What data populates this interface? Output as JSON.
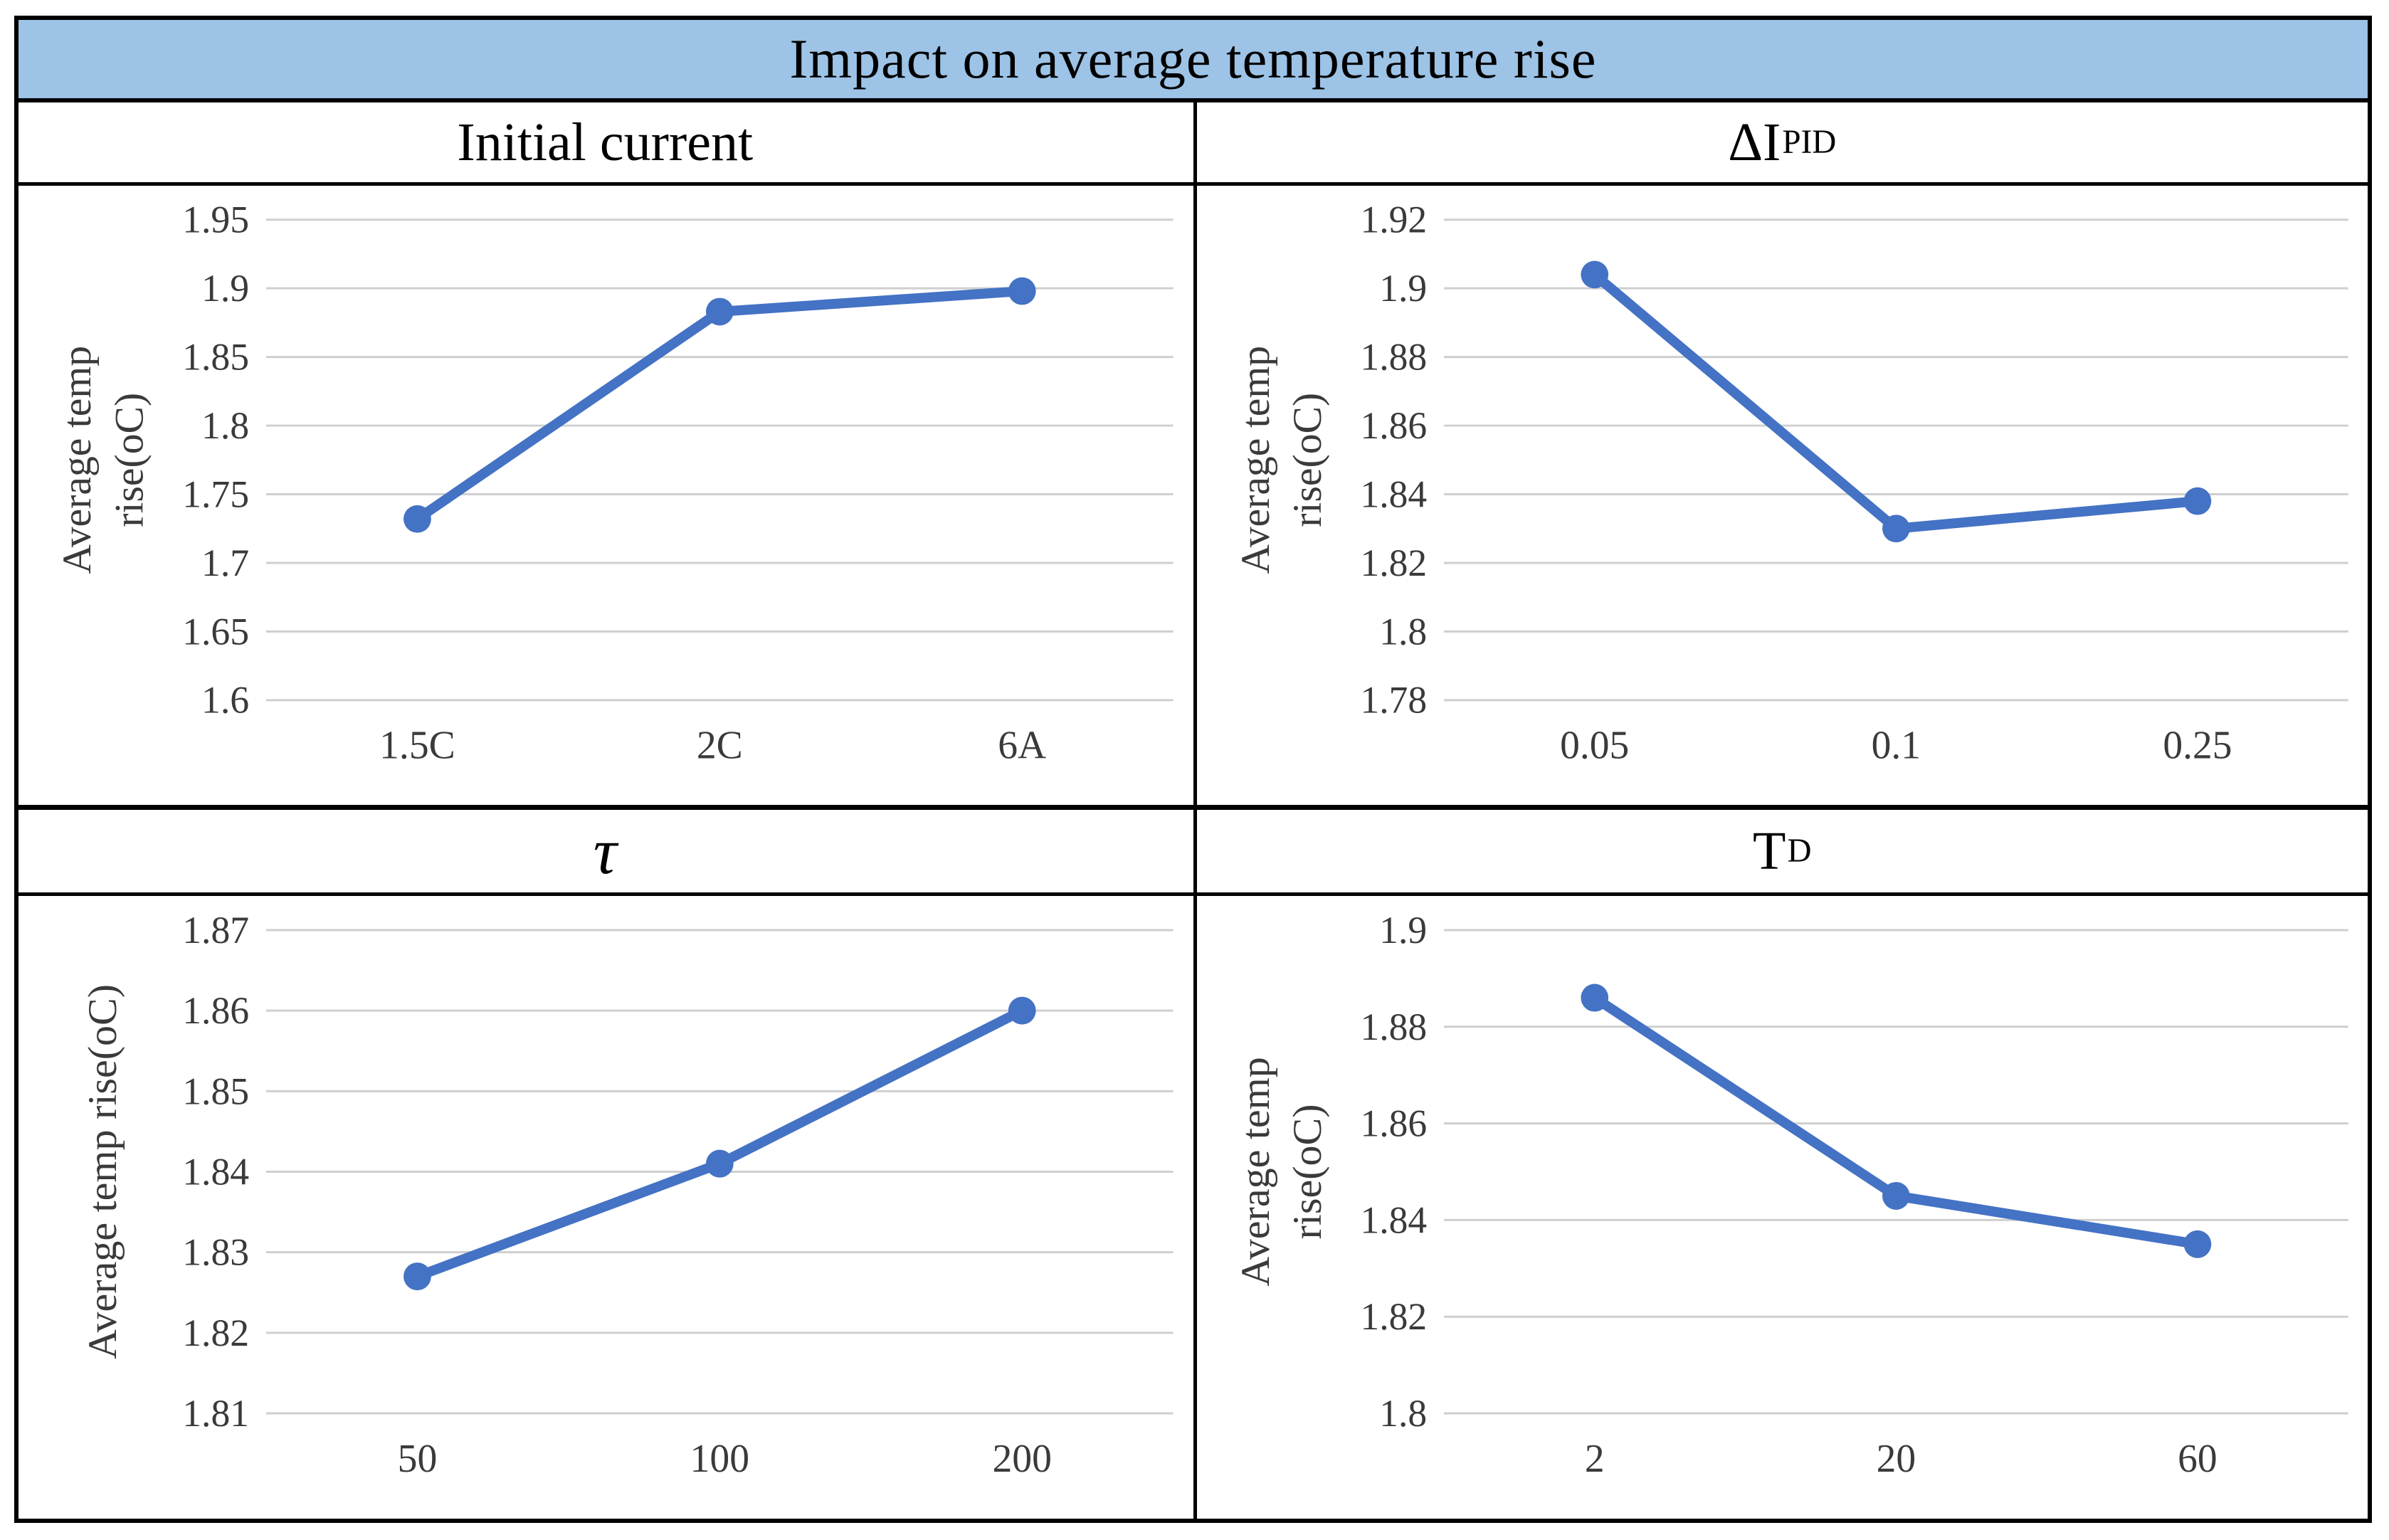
{
  "title": "Impact on average temperature rise",
  "colors": {
    "title_bg": "#9DC3E6",
    "series_line": "#4472C4",
    "gridline": "#CFCFCF",
    "tick_text": "#3A3A3A",
    "border": "#000000"
  },
  "chart_data": [
    {
      "type": "line",
      "header": {
        "main": "Initial current",
        "sub": ""
      },
      "ylabel": "Average temp rise(oC)",
      "ylabel_lines": [
        "Average temp",
        "rise(oC)"
      ],
      "categories": [
        "1.5C",
        "2C",
        "6A"
      ],
      "values": [
        1.732,
        1.883,
        1.898
      ],
      "ytick_labels": [
        "1.95",
        "1.9",
        "1.85",
        "1.8",
        "1.75",
        "1.7",
        "1.65",
        "1.6"
      ],
      "ylim": [
        1.6,
        1.95
      ],
      "xlabel": "",
      "grid": "on",
      "legend": "none"
    },
    {
      "type": "line",
      "header": {
        "main": "ΔI",
        "sub": "PID"
      },
      "ylabel": "Average temp rise(oC)",
      "ylabel_lines": [
        "Average temp",
        "rise(oC)"
      ],
      "categories": [
        "0.05",
        "0.1",
        "0.25"
      ],
      "values": [
        1.904,
        1.83,
        1.838
      ],
      "ytick_labels": [
        "1.92",
        "1.9",
        "1.88",
        "1.86",
        "1.84",
        "1.82",
        "1.8",
        "1.78"
      ],
      "ylim": [
        1.78,
        1.92
      ],
      "xlabel": "",
      "grid": "on",
      "legend": "none"
    },
    {
      "type": "line",
      "header": {
        "main": "τ",
        "sub": ""
      },
      "ylabel": "Average temp rise(oC)",
      "ylabel_lines": [
        "Average temp rise(oC)"
      ],
      "categories": [
        "50",
        "100",
        "200"
      ],
      "values": [
        1.827,
        1.841,
        1.86
      ],
      "ytick_labels": [
        "1.87",
        "1.86",
        "1.85",
        "1.84",
        "1.83",
        "1.82",
        "1.81"
      ],
      "ylim": [
        1.81,
        1.87
      ],
      "xlabel": "",
      "grid": "on",
      "legend": "none"
    },
    {
      "type": "line",
      "header": {
        "main": "T",
        "sub": "D"
      },
      "ylabel": "Average temp rise(oC)",
      "ylabel_lines": [
        "Average temp",
        "rise(oC)"
      ],
      "categories": [
        "2",
        "20",
        "60"
      ],
      "values": [
        1.886,
        1.845,
        1.835
      ],
      "ytick_labels": [
        "1.9",
        "1.88",
        "1.86",
        "1.84",
        "1.82",
        "1.8"
      ],
      "ylim": [
        1.8,
        1.9
      ],
      "xlabel": "",
      "grid": "on",
      "legend": "none"
    }
  ]
}
